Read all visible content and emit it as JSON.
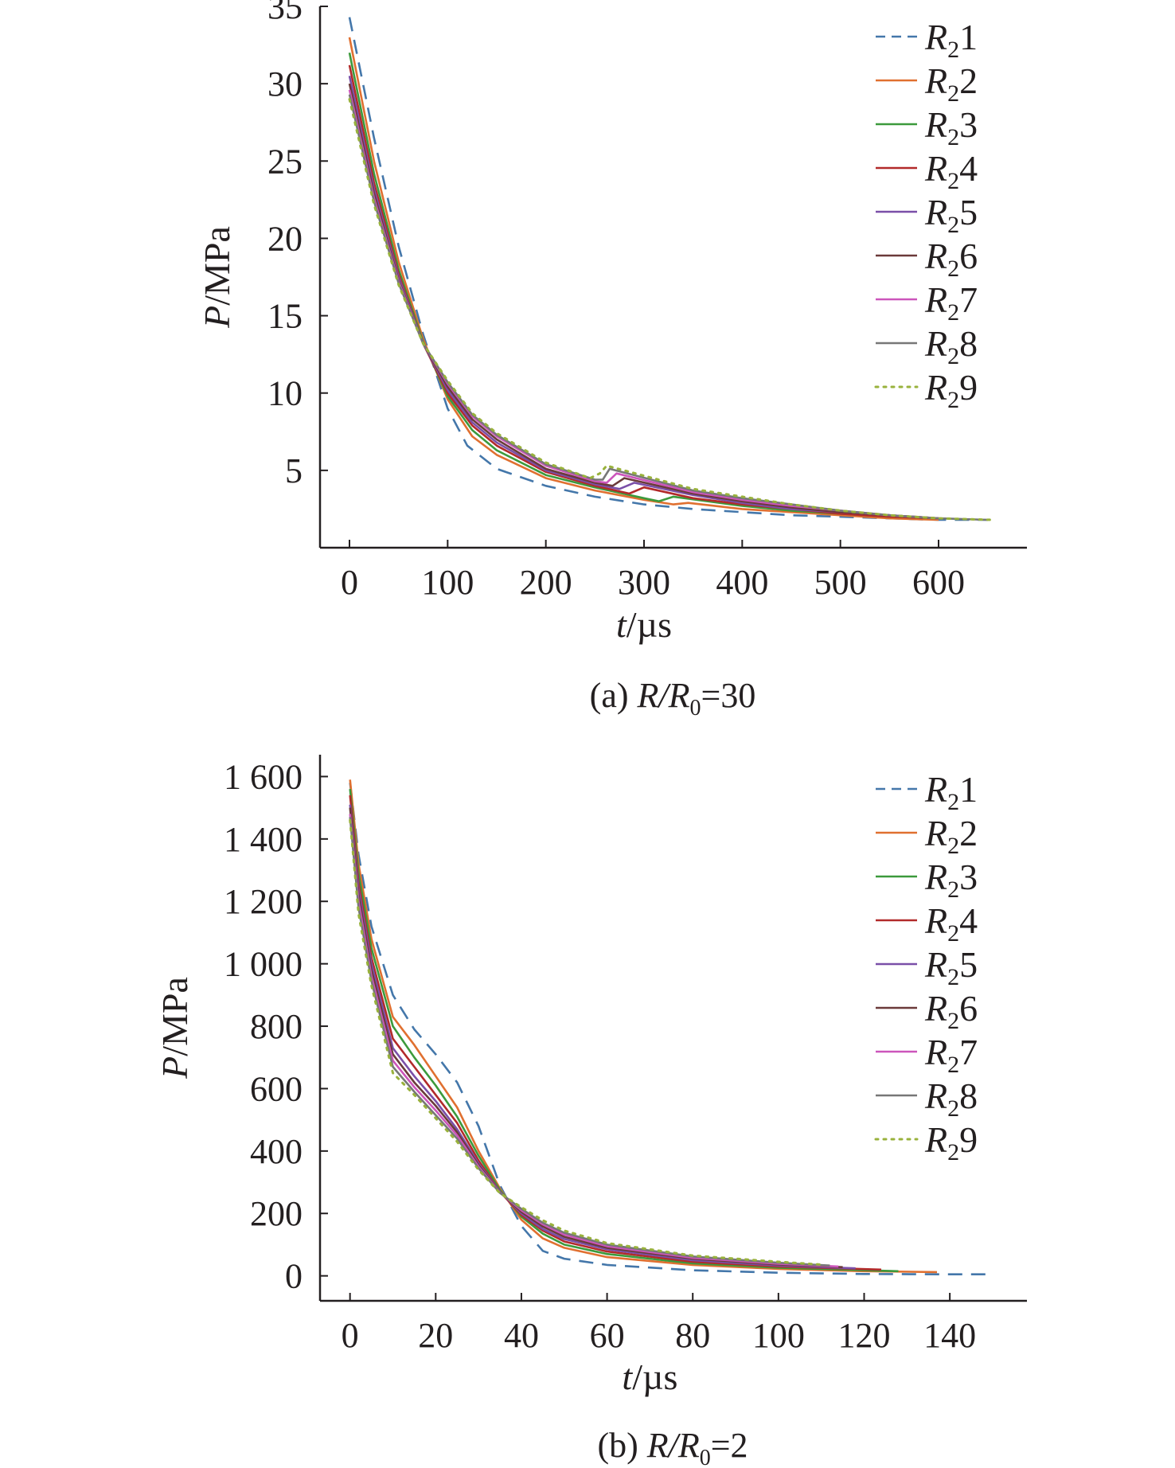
{
  "series_styles": [
    {
      "color": "#4477aa",
      "dash": "dashed"
    },
    {
      "color": "#e07030",
      "dash": "solid"
    },
    {
      "color": "#3c9a3c",
      "dash": "solid"
    },
    {
      "color": "#b22a2a",
      "dash": "solid"
    },
    {
      "color": "#7a4fa8",
      "dash": "solid"
    },
    {
      "color": "#6b3a3a",
      "dash": "solid"
    },
    {
      "color": "#cc55bb",
      "dash": "solid"
    },
    {
      "color": "#777777",
      "dash": "solid"
    },
    {
      "color": "#99b23c",
      "dash": "dotted"
    }
  ],
  "chart_data": [
    {
      "type": "line",
      "panel": "a",
      "caption_prefix": "(a) ",
      "caption_main": "R/R",
      "caption_sub": "0",
      "caption_suffix": "=30",
      "xlabel_var": "t",
      "xlabel_unit": "/µs",
      "ylabel_var": "P",
      "ylabel_unit": "/MPa",
      "xlim": [
        -30,
        690
      ],
      "ylim": [
        0,
        35
      ],
      "xticks": [
        0,
        100,
        200,
        300,
        400,
        500,
        600
      ],
      "xtick_labels": [
        "0",
        "100",
        "200",
        "300",
        "400",
        "500",
        "600"
      ],
      "yticks": [
        5,
        10,
        15,
        20,
        25,
        30,
        35
      ],
      "ytick_labels": [
        "5",
        "10",
        "15",
        "20",
        "25",
        "30",
        "35"
      ],
      "legend_position": "top-right",
      "series": [
        {
          "name": "R",
          "sub": "2",
          "num": "1",
          "x": [
            0,
            25,
            50,
            75,
            100,
            120,
            150,
            200,
            250,
            300,
            350,
            400,
            450,
            500,
            550,
            600,
            650
          ],
          "y": [
            34.3,
            26.5,
            19.5,
            13.8,
            9.0,
            6.6,
            5.1,
            4.0,
            3.3,
            2.8,
            2.5,
            2.3,
            2.1,
            2.0,
            1.9,
            1.8,
            1.8
          ]
        },
        {
          "name": "R",
          "sub": "2",
          "num": "2",
          "x": [
            0,
            25,
            50,
            75,
            100,
            125,
            150,
            200,
            250,
            300,
            330,
            345,
            400,
            450,
            500,
            550,
            600
          ],
          "y": [
            33.0,
            25.0,
            18.5,
            13.5,
            9.6,
            7.2,
            6.0,
            4.5,
            3.7,
            3.1,
            2.8,
            2.9,
            2.5,
            2.3,
            2.1,
            1.9,
            1.8
          ]
        },
        {
          "name": "R",
          "sub": "2",
          "num": "3",
          "x": [
            0,
            25,
            50,
            75,
            100,
            125,
            150,
            200,
            250,
            300,
            315,
            330,
            400,
            450,
            500,
            550,
            600
          ],
          "y": [
            32.0,
            24.2,
            18.0,
            13.3,
            9.8,
            7.6,
            6.3,
            4.7,
            3.9,
            3.2,
            3.0,
            3.3,
            2.7,
            2.4,
            2.2,
            2.0,
            1.9
          ]
        },
        {
          "name": "R",
          "sub": "2",
          "num": "4",
          "x": [
            0,
            25,
            50,
            75,
            100,
            125,
            150,
            200,
            250,
            285,
            300,
            350,
            400,
            450,
            500,
            550,
            600
          ],
          "y": [
            31.2,
            23.6,
            17.7,
            13.2,
            10.0,
            7.9,
            6.6,
            4.9,
            4.0,
            3.5,
            3.9,
            3.2,
            2.8,
            2.5,
            2.2,
            2.0,
            1.9
          ]
        },
        {
          "name": "R",
          "sub": "2",
          "num": "5",
          "x": [
            0,
            25,
            50,
            75,
            100,
            125,
            150,
            200,
            250,
            275,
            290,
            350,
            400,
            450,
            500,
            550,
            600
          ],
          "y": [
            30.5,
            23.2,
            17.5,
            13.2,
            10.2,
            8.1,
            6.8,
            5.0,
            4.1,
            3.8,
            4.2,
            3.4,
            2.9,
            2.5,
            2.3,
            2.1,
            1.9
          ]
        },
        {
          "name": "R",
          "sub": "2",
          "num": "6",
          "x": [
            0,
            25,
            50,
            75,
            100,
            125,
            150,
            200,
            250,
            268,
            280,
            350,
            400,
            450,
            500,
            550,
            600
          ],
          "y": [
            30.0,
            22.9,
            17.3,
            13.2,
            10.4,
            8.3,
            7.0,
            5.1,
            4.2,
            4.0,
            4.5,
            3.5,
            3.0,
            2.6,
            2.3,
            2.1,
            1.9
          ]
        },
        {
          "name": "R",
          "sub": "2",
          "num": "7",
          "x": [
            0,
            25,
            50,
            75,
            100,
            125,
            150,
            200,
            250,
            262,
            272,
            350,
            400,
            450,
            500,
            550,
            600
          ],
          "y": [
            29.6,
            22.6,
            17.2,
            13.2,
            10.6,
            8.5,
            7.2,
            5.3,
            4.3,
            4.2,
            4.8,
            3.6,
            3.1,
            2.7,
            2.4,
            2.1,
            1.9
          ]
        },
        {
          "name": "R",
          "sub": "2",
          "num": "8",
          "x": [
            0,
            25,
            50,
            75,
            100,
            125,
            150,
            200,
            250,
            258,
            265,
            350,
            400,
            450,
            500,
            550,
            600,
            650
          ],
          "y": [
            29.3,
            22.4,
            17.1,
            13.2,
            10.7,
            8.6,
            7.3,
            5.4,
            4.4,
            4.4,
            5.1,
            3.7,
            3.2,
            2.8,
            2.4,
            2.1,
            1.9,
            1.8
          ]
        },
        {
          "name": "R",
          "sub": "2",
          "num": "9",
          "x": [
            0,
            25,
            50,
            75,
            100,
            125,
            150,
            200,
            245,
            255,
            262,
            350,
            400,
            450,
            500,
            550,
            600,
            655
          ],
          "y": [
            29.0,
            22.2,
            17.0,
            13.2,
            10.8,
            8.7,
            7.4,
            5.5,
            4.5,
            4.8,
            5.3,
            3.8,
            3.3,
            2.8,
            2.4,
            2.1,
            1.9,
            1.8
          ]
        }
      ]
    },
    {
      "type": "line",
      "panel": "b",
      "caption_prefix": "(b) ",
      "caption_main": "R/R",
      "caption_sub": "0",
      "caption_suffix": "=2",
      "xlabel_var": "t",
      "xlabel_unit": "/µs",
      "ylabel_var": "P",
      "ylabel_unit": "/MPa",
      "xlim": [
        -7,
        158
      ],
      "ylim": [
        -80,
        1670
      ],
      "xticks": [
        0,
        20,
        40,
        60,
        80,
        100,
        120,
        140
      ],
      "xtick_labels": [
        "0",
        "20",
        "40",
        "60",
        "80",
        "100",
        "120",
        "140"
      ],
      "yticks": [
        0,
        200,
        400,
        600,
        800,
        1000,
        1200,
        1400,
        1600
      ],
      "ytick_labels": [
        "0",
        "200",
        "400",
        "600",
        "800",
        "1 000",
        "1 200",
        "1 400",
        "1 600"
      ],
      "legend_position": "top-right",
      "series": [
        {
          "name": "R",
          "sub": "2",
          "num": "1",
          "x": [
            0,
            2,
            5,
            10,
            15,
            20,
            25,
            30,
            35,
            40,
            45,
            50,
            60,
            80,
            100,
            120,
            140,
            150
          ],
          "y": [
            1580,
            1350,
            1120,
            900,
            790,
            710,
            620,
            480,
            290,
            160,
            80,
            55,
            35,
            18,
            10,
            6,
            5,
            5
          ]
        },
        {
          "name": "R",
          "sub": "2",
          "num": "2",
          "x": [
            0,
            2,
            5,
            10,
            15,
            20,
            25,
            30,
            35,
            40,
            45,
            50,
            60,
            80,
            100,
            120,
            137
          ],
          "y": [
            1590,
            1320,
            1080,
            830,
            740,
            640,
            540,
            400,
            280,
            180,
            120,
            90,
            60,
            35,
            22,
            15,
            12
          ]
        },
        {
          "name": "R",
          "sub": "2",
          "num": "3",
          "x": [
            0,
            2,
            5,
            10,
            15,
            20,
            25,
            30,
            35,
            40,
            45,
            50,
            60,
            80,
            100,
            120,
            128
          ],
          "y": [
            1560,
            1290,
            1050,
            800,
            700,
            610,
            510,
            385,
            275,
            190,
            135,
            100,
            70,
            40,
            26,
            18,
            15
          ]
        },
        {
          "name": "R",
          "sub": "2",
          "num": "4",
          "x": [
            0,
            2,
            5,
            10,
            15,
            20,
            25,
            30,
            35,
            40,
            45,
            50,
            60,
            80,
            100,
            124
          ],
          "y": [
            1540,
            1260,
            1020,
            760,
            670,
            580,
            490,
            370,
            270,
            195,
            145,
            110,
            78,
            45,
            30,
            20
          ]
        },
        {
          "name": "R",
          "sub": "2",
          "num": "5",
          "x": [
            0,
            2,
            5,
            10,
            15,
            20,
            25,
            30,
            35,
            40,
            45,
            50,
            60,
            80,
            100,
            118
          ],
          "y": [
            1510,
            1240,
            1000,
            730,
            640,
            560,
            470,
            360,
            270,
            200,
            150,
            118,
            85,
            50,
            33,
            24
          ]
        },
        {
          "name": "R",
          "sub": "2",
          "num": "6",
          "x": [
            0,
            2,
            5,
            10,
            15,
            20,
            25,
            30,
            35,
            40,
            45,
            50,
            60,
            80,
            100,
            115
          ],
          "y": [
            1500,
            1220,
            980,
            710,
            620,
            545,
            460,
            355,
            268,
            205,
            158,
            125,
            90,
            55,
            36,
            28
          ]
        },
        {
          "name": "R",
          "sub": "2",
          "num": "7",
          "x": [
            0,
            2,
            5,
            10,
            15,
            20,
            25,
            30,
            35,
            40,
            45,
            50,
            60,
            80,
            100,
            114
          ],
          "y": [
            1480,
            1200,
            960,
            690,
            605,
            530,
            450,
            350,
            267,
            210,
            165,
            132,
            95,
            58,
            39,
            30
          ]
        },
        {
          "name": "R",
          "sub": "2",
          "num": "8",
          "x": [
            0,
            2,
            5,
            10,
            15,
            20,
            25,
            30,
            35,
            40,
            45,
            50,
            60,
            80,
            100,
            112
          ],
          "y": [
            1470,
            1180,
            945,
            670,
            590,
            515,
            440,
            345,
            266,
            215,
            170,
            138,
            100,
            62,
            42,
            33
          ]
        },
        {
          "name": "R",
          "sub": "2",
          "num": "9",
          "x": [
            0,
            2,
            5,
            10,
            15,
            20,
            25,
            30,
            35,
            40,
            45,
            50,
            60,
            80,
            100,
            110
          ],
          "y": [
            1460,
            1160,
            930,
            650,
            580,
            505,
            430,
            340,
            265,
            220,
            178,
            145,
            105,
            65,
            45,
            36
          ]
        }
      ]
    }
  ]
}
